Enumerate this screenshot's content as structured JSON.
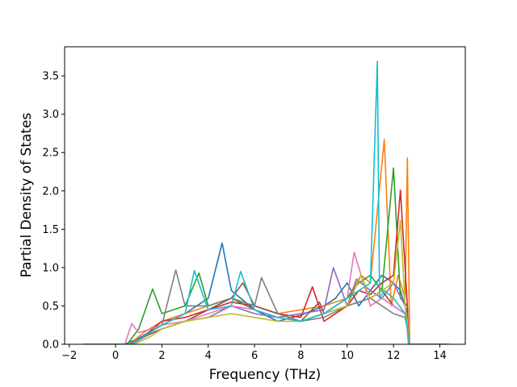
{
  "chart_data": {
    "type": "line",
    "title": "",
    "xlabel": "Frequency (THz)",
    "ylabel": "Partial Density of States",
    "xlim": [
      -2.2,
      15.1
    ],
    "ylim": [
      0,
      3.88
    ],
    "xticks": [
      -2,
      0,
      2,
      4,
      6,
      8,
      10,
      12,
      14
    ],
    "xtick_labels": [
      "−2",
      "0",
      "2",
      "4",
      "6",
      "8",
      "10",
      "12",
      "14"
    ],
    "yticks": [
      0.0,
      0.5,
      1.0,
      1.5,
      2.0,
      2.5,
      3.0,
      3.5
    ],
    "ytick_labels": [
      "0.0",
      "0.5",
      "1.0",
      "1.5",
      "2.0",
      "2.5",
      "3.0",
      "3.5"
    ],
    "grid": false,
    "legend": "none",
    "colors": [
      "#1f77b4",
      "#ff7f0e",
      "#2ca02c",
      "#d62728",
      "#9467bd",
      "#8c564b",
      "#e377c2",
      "#7f7f7f",
      "#bcbd22",
      "#17becf"
    ],
    "series": [
      {
        "x": [
          -1.4,
          0.4,
          1.0,
          2.0,
          3.0,
          4.0,
          4.6,
          5.0,
          6.0,
          7.0,
          8.0,
          9.0,
          9.5,
          10.0,
          10.5,
          11.0,
          11.5,
          12.0,
          12.3,
          12.6,
          12.65,
          14.4
        ],
        "y": [
          0,
          0,
          0.08,
          0.25,
          0.4,
          0.6,
          1.32,
          0.7,
          0.45,
          0.3,
          0.38,
          0.5,
          0.6,
          0.8,
          0.5,
          0.7,
          0.9,
          0.8,
          0.7,
          0.4,
          0,
          0
        ]
      },
      {
        "x": [
          -1.4,
          0.6,
          1.2,
          2.0,
          3.0,
          4.0,
          5.0,
          6.0,
          7.0,
          8.0,
          9.0,
          10.0,
          10.6,
          11.0,
          11.6,
          11.9,
          12.2,
          12.5,
          12.6,
          12.7,
          14.4
        ],
        "y": [
          0,
          0,
          0.15,
          0.3,
          0.4,
          0.5,
          0.6,
          0.5,
          0.4,
          0.45,
          0.5,
          0.6,
          0.9,
          0.8,
          2.67,
          0.5,
          0.9,
          0.6,
          2.43,
          0,
          0
        ]
      },
      {
        "x": [
          -1.4,
          0.5,
          1.0,
          1.6,
          2.0,
          3.0,
          3.6,
          4.0,
          5.0,
          6.0,
          7.0,
          8.0,
          9.0,
          10.0,
          10.5,
          11.0,
          11.5,
          12.0,
          12.3,
          12.6,
          12.65,
          14.4
        ],
        "y": [
          0,
          0,
          0.2,
          0.72,
          0.4,
          0.5,
          0.93,
          0.5,
          0.6,
          0.45,
          0.35,
          0.3,
          0.4,
          0.6,
          0.8,
          0.9,
          0.7,
          2.3,
          0.6,
          0.5,
          0,
          0
        ]
      },
      {
        "x": [
          -1.4,
          0.6,
          1.2,
          2.0,
          3.0,
          4.0,
          5.0,
          6.0,
          7.0,
          8.0,
          8.5,
          9.0,
          10.0,
          10.5,
          11.0,
          11.5,
          12.0,
          12.3,
          12.6,
          12.65,
          14.4
        ],
        "y": [
          0,
          0,
          0.1,
          0.3,
          0.35,
          0.45,
          0.55,
          0.5,
          0.4,
          0.35,
          0.75,
          0.3,
          0.5,
          0.7,
          0.65,
          0.8,
          0.9,
          2.01,
          0.5,
          0,
          0
        ]
      },
      {
        "x": [
          -1.4,
          0.7,
          1.4,
          2.0,
          3.0,
          4.0,
          5.0,
          6.0,
          7.0,
          8.0,
          9.0,
          9.4,
          10.0,
          10.4,
          11.0,
          11.5,
          12.0,
          12.5,
          12.6,
          12.65,
          14.4
        ],
        "y": [
          0,
          0,
          0.12,
          0.2,
          0.3,
          0.35,
          0.5,
          0.4,
          0.35,
          0.4,
          0.45,
          1.0,
          0.5,
          0.85,
          0.7,
          0.6,
          0.8,
          0.5,
          0.3,
          0,
          0
        ]
      },
      {
        "x": [
          -1.4,
          0.6,
          1.2,
          2.0,
          3.0,
          4.0,
          5.0,
          5.5,
          6.0,
          7.0,
          8.0,
          8.8,
          9.0,
          10.0,
          11.0,
          11.5,
          12.0,
          12.5,
          12.6,
          12.65,
          14.4
        ],
        "y": [
          0,
          0,
          0.1,
          0.2,
          0.3,
          0.45,
          0.6,
          0.8,
          0.5,
          0.4,
          0.3,
          0.55,
          0.4,
          0.5,
          0.6,
          0.7,
          0.5,
          0.4,
          0.3,
          0,
          0
        ]
      },
      {
        "x": [
          -1.4,
          0.4,
          0.7,
          1.0,
          2.0,
          3.0,
          4.0,
          5.0,
          6.0,
          7.0,
          8.0,
          9.0,
          10.0,
          10.3,
          11.0,
          11.5,
          12.0,
          12.5,
          12.6,
          12.65,
          14.4
        ],
        "y": [
          0,
          0,
          0.27,
          0.15,
          0.25,
          0.3,
          0.4,
          0.5,
          0.45,
          0.35,
          0.3,
          0.4,
          0.6,
          1.2,
          0.5,
          0.6,
          0.5,
          0.4,
          0.2,
          0,
          0
        ]
      },
      {
        "x": [
          -1.4,
          0.6,
          1.2,
          2.0,
          2.6,
          3.0,
          4.0,
          5.0,
          6.0,
          6.3,
          7.0,
          8.0,
          9.0,
          10.0,
          11.0,
          11.5,
          12.0,
          12.5,
          12.6,
          12.65,
          14.4
        ],
        "y": [
          0,
          0,
          0.1,
          0.25,
          0.97,
          0.5,
          0.5,
          0.6,
          0.5,
          0.87,
          0.4,
          0.3,
          0.35,
          0.5,
          0.6,
          0.5,
          0.4,
          0.35,
          0.2,
          0,
          0
        ]
      },
      {
        "x": [
          -1.4,
          0.8,
          1.5,
          2.0,
          3.0,
          4.0,
          5.0,
          6.0,
          7.0,
          8.0,
          9.0,
          10.0,
          10.6,
          11.0,
          11.5,
          12.0,
          12.3,
          12.5,
          12.6,
          12.65,
          14.4
        ],
        "y": [
          0,
          0,
          0.1,
          0.2,
          0.3,
          0.35,
          0.4,
          0.35,
          0.3,
          0.3,
          0.4,
          0.5,
          0.9,
          0.6,
          0.7,
          0.8,
          1.62,
          0.5,
          0.3,
          0,
          0
        ]
      },
      {
        "x": [
          -1.4,
          0.7,
          1.2,
          2.0,
          3.0,
          3.4,
          4.0,
          5.0,
          5.4,
          6.0,
          7.0,
          8.0,
          9.0,
          10.0,
          11.0,
          11.3,
          11.4,
          11.6,
          12.0,
          12.5,
          12.6,
          12.65,
          14.4
        ],
        "y": [
          0,
          0,
          0.1,
          0.25,
          0.4,
          0.96,
          0.45,
          0.5,
          0.95,
          0.45,
          0.35,
          0.3,
          0.4,
          0.6,
          0.8,
          3.69,
          0.6,
          0.7,
          0.6,
          0.4,
          0.2,
          0,
          0
        ]
      }
    ]
  }
}
